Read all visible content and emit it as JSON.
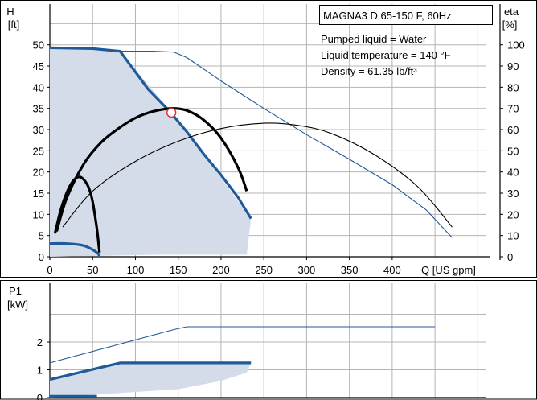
{
  "colors": {
    "background": "#ffffff",
    "grid": "#b4b4b4",
    "axis": "#000000",
    "region_fill": "#d3dce8",
    "curve_blue": "#1f5a9a",
    "curve_black": "#000000",
    "marker_fill": "#ffffff",
    "marker_stroke": "#e03030"
  },
  "chart_data": [
    {
      "type": "line",
      "panel": "head",
      "info_box": {
        "title": "MAGNA3 D 65-150 F, 60Hz",
        "lines": [
          "Pumped liquid = Water",
          "Liquid temperature = 140 °F",
          "Density = 61.35 lb/ft³"
        ]
      },
      "y_label": [
        "H",
        "[ft]"
      ],
      "y2_label": [
        "eta",
        "[%]"
      ],
      "x_label": "Q [US gpm]",
      "xlim": [
        0,
        550
      ],
      "ylim": [
        0,
        60
      ],
      "y2lim": [
        0,
        120
      ],
      "x_ticks": [
        "0",
        "50",
        "100",
        "150",
        "200",
        "250",
        "300",
        "350",
        "400"
      ],
      "y_ticks": [
        "0",
        "5",
        "10",
        "15",
        "20",
        "25",
        "30",
        "35",
        "40",
        "45",
        "50"
      ],
      "y2_ticks": [
        "0",
        "10",
        "20",
        "30",
        "40",
        "50",
        "60",
        "70",
        "80",
        "90",
        "100"
      ],
      "grid": true,
      "operating_point": {
        "x": 142,
        "y": 34
      },
      "region": {
        "x": [
          0,
          0,
          58,
          82,
          155,
          235,
          230,
          130,
          0
        ],
        "y": [
          3,
          49.3,
          49.3,
          48.5,
          31,
          9,
          0.5,
          0.5,
          0
        ]
      },
      "series": [
        {
          "role": "head_max",
          "style": "thick",
          "color": "blue",
          "axis": "left",
          "x": [
            0,
            50,
            82,
            115,
            140,
            160,
            180,
            200,
            220,
            235
          ],
          "y": [
            49.3,
            49.1,
            48.5,
            39.5,
            34.3,
            29.5,
            24.2,
            19.3,
            14,
            9
          ]
        },
        {
          "role": "head_min",
          "style": "thick",
          "color": "blue",
          "axis": "left",
          "x": [
            0,
            20,
            40,
            55,
            58
          ],
          "y": [
            3.1,
            3.1,
            2.6,
            1,
            0
          ]
        },
        {
          "role": "head_max_extended",
          "style": "thin",
          "color": "blue",
          "axis": "left",
          "x": [
            82,
            120,
            145,
            160,
            200,
            250,
            300,
            350,
            400,
            440,
            470
          ],
          "y": [
            48.5,
            48.5,
            48.3,
            47,
            41.5,
            35,
            28.8,
            23,
            17,
            11,
            4.5
          ]
        },
        {
          "role": "eta_thick",
          "style": "thick",
          "color": "black",
          "axis": "right",
          "x": [
            8,
            20,
            40,
            60,
            80,
            100,
            120,
            142,
            160,
            180,
            200,
            220,
            230
          ],
          "y": [
            12,
            28,
            44,
            54,
            60.5,
            65.5,
            68.5,
            70,
            69,
            64.5,
            56,
            42,
            31
          ]
        },
        {
          "role": "eta_min",
          "style": "thick",
          "color": "black",
          "axis": "right",
          "x": [
            6,
            12,
            18,
            25,
            32,
            38,
            45,
            50,
            55,
            58
          ],
          "y": [
            11,
            21,
            28.5,
            34.5,
            37.5,
            37,
            33,
            26,
            13,
            2
          ]
        },
        {
          "role": "eta_thin",
          "style": "thin",
          "color": "black",
          "axis": "right",
          "x": [
            15,
            50,
            100,
            150,
            200,
            250,
            290,
            330,
            380,
            430,
            470
          ],
          "y": [
            14,
            31,
            45,
            54.5,
            60.5,
            63,
            62,
            58,
            48,
            33,
            14
          ]
        }
      ]
    },
    {
      "type": "line",
      "panel": "power",
      "y_label": [
        "P1",
        "[kW]"
      ],
      "xlim": [
        0,
        550
      ],
      "ylim": [
        0,
        3.55
      ],
      "y_ticks": [
        "0",
        "1",
        "2"
      ],
      "grid": true,
      "region": {
        "x": [
          0,
          0,
          82,
          235,
          230,
          200,
          150,
          0
        ],
        "y": [
          0,
          0.65,
          1.25,
          1.25,
          0.9,
          0.6,
          0.3,
          0
        ]
      },
      "series": [
        {
          "role": "p1_max",
          "style": "thick",
          "color": "blue",
          "x": [
            0,
            82,
            235
          ],
          "y": [
            0.65,
            1.25,
            1.25
          ]
        },
        {
          "role": "p1_min",
          "style": "thick",
          "color": "blue",
          "x": [
            0,
            55
          ],
          "y": [
            0.05,
            0.05
          ]
        },
        {
          "role": "p1_max_extended",
          "style": "thin",
          "color": "blue",
          "x": [
            0,
            145,
            160,
            450
          ],
          "y": [
            1.25,
            2.45,
            2.55,
            2.55
          ]
        }
      ]
    }
  ]
}
